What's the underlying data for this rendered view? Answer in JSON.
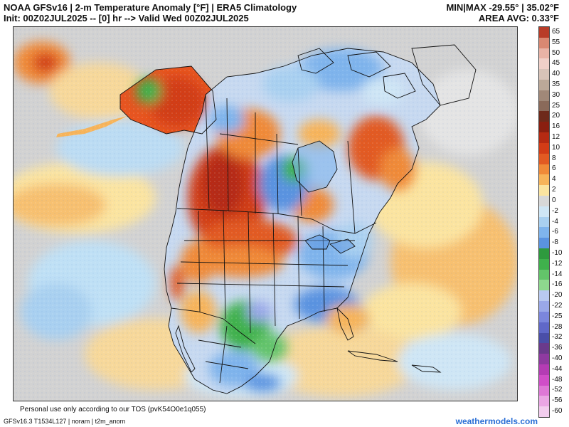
{
  "header": {
    "title_line1": "NOAA GFSv16 | 2-m Temperature Anomaly [°F] | ERA5 Climatology",
    "title_line2": "Init: 00Z02JUL2025 -- [0] hr --> Valid Wed 00Z02JUL2025",
    "stats_line1": "MIN|MAX -29.55° | 35.02°F",
    "stats_line2": "AREA AVG: 0.33°F"
  },
  "colorbar": {
    "labels": [
      "65",
      "55",
      "50",
      "45",
      "40",
      "35",
      "30",
      "25",
      "20",
      "16",
      "12",
      "10",
      "8",
      "6",
      "4",
      "2",
      "0",
      "-2",
      "-4",
      "-6",
      "-8",
      "-10",
      "-12",
      "-14",
      "-16",
      "-20",
      "-22",
      "-25",
      "-28",
      "-32",
      "-36",
      "-40",
      "-44",
      "-48",
      "-52",
      "-56",
      "-60"
    ],
    "colors": [
      "#b83c28",
      "#d98872",
      "#e8b3a6",
      "#f0d0c8",
      "#d8c3b8",
      "#bba898",
      "#a08878",
      "#8a6a5a",
      "#6e2a1a",
      "#8a1f10",
      "#b52a12",
      "#d23c16",
      "#e25a22",
      "#f08a38",
      "#f7b45a",
      "#fbe4a0",
      "#d8d8d8",
      "#cfe6f5",
      "#a9d0f0",
      "#7fb4ec",
      "#5a93e0",
      "#2e9a3e",
      "#3fb14c",
      "#63c46a",
      "#8ed88e",
      "#b9c9f0",
      "#9aa8e8",
      "#7b86dc",
      "#6068c8",
      "#4a4ea8",
      "#6a3a8c",
      "#8e3aa0",
      "#b43cb4",
      "#d04ec8",
      "#de78d6",
      "#eaa6e4",
      "#f2cdee"
    ]
  },
  "footer": {
    "disclaimer": "Personal use only according to our TOS (pvK54O0e1q055)",
    "model_info": "GFSv16.3 T1534L127 | noram | t2m_anom",
    "brand": "weathermodels.com"
  },
  "colors": {
    "warm": "#e8541f",
    "hot": "#c23318",
    "cool": "#7fb8ee",
    "cold": "#3a8fe0",
    "green": "#3fb14c",
    "neutral": "#cfcfcf",
    "brand": "#2a6fd6"
  }
}
